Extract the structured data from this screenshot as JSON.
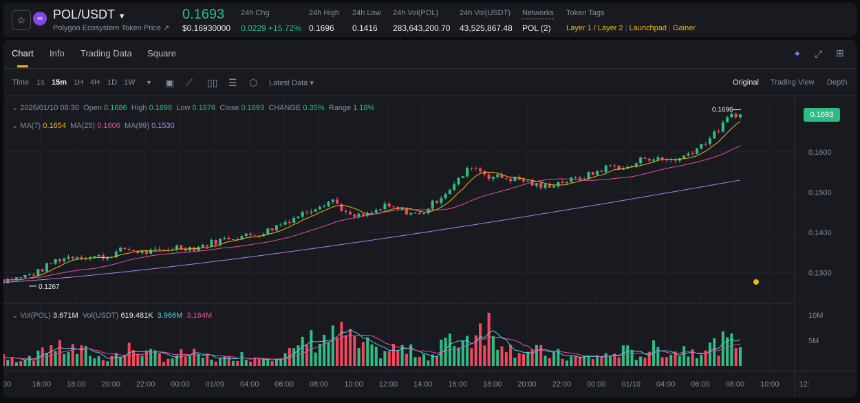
{
  "header": {
    "pair": "POL/USDT",
    "subtitle": "Polygon Ecosystem Token Price ↗",
    "last_price": "0.1693",
    "last_price_usd": "$0.16930000",
    "stats": [
      {
        "label": "24h Chg",
        "value": "0.0229 +15.72%"
      },
      {
        "label": "24h High",
        "value": "0.1696"
      },
      {
        "label": "24h Low",
        "value": "0.1416"
      },
      {
        "label": "24h Vol(POL)",
        "value": "283,643,200.70"
      },
      {
        "label": "24h Vol(USDT)",
        "value": "43,525,867.48"
      },
      {
        "label": "Networks",
        "value": "POL (2)"
      },
      {
        "label": "Token Tags"
      }
    ],
    "tags": [
      "Layer 1 / Layer 2",
      "Launchpad",
      "Gainer"
    ]
  },
  "tabs": [
    "Chart",
    "Info",
    "Trading Data",
    "Square"
  ],
  "toolbar": {
    "intervals": [
      "Time",
      "1s",
      "15m",
      "1H",
      "4H",
      "1D",
      "1W"
    ],
    "active": "15m",
    "latest": "Latest Data ▾",
    "views": [
      "Original",
      "Trading View",
      "Depth"
    ]
  },
  "ohlc": {
    "date": "2026/01/10 08:30",
    "open_l": "Open",
    "open": "0.1686",
    "high_l": "High",
    "high": "0.1696",
    "low_l": "Low",
    "low": "0.1676",
    "close_l": "Close",
    "close": "0.1693",
    "change_l": "CHANGE",
    "change": "0.35%",
    "range_l": "Range",
    "range": "1.18%"
  },
  "ma": {
    "ma7_l": "MA(7)",
    "ma7": "0.1654",
    "ma25_l": "MA(25)",
    "ma25": "0.1606",
    "ma99_l": "MA(99)",
    "ma99": "0.1530"
  },
  "vol": {
    "l1": "Vol(POL)",
    "v1": "3.671M",
    "l2": "Vol(USDT)",
    "v2": "619.481K",
    "v3": "3.966M",
    "v4": "3.164M"
  },
  "colors": {
    "up": "#2ebd85",
    "down": "#f6465d",
    "ma7": "#f0b90b",
    "ma25": "#e84f9c",
    "ma99": "#b083f0"
  },
  "chart_data": {
    "type": "candlestick",
    "interval": "15m",
    "hourly_close": [
      0.1293,
      0.1281,
      0.1288,
      0.1302,
      0.1331,
      0.1341,
      0.1339,
      0.134,
      0.136,
      0.135,
      0.1353,
      0.1365,
      0.1361,
      0.1375,
      0.1387,
      0.1392,
      0.14,
      0.1421,
      0.1442,
      0.1464,
      0.1481,
      0.1438,
      0.1443,
      0.1464,
      0.1455,
      0.1443,
      0.1481,
      0.1518,
      0.1566,
      0.154,
      0.1535,
      0.1529,
      0.1512,
      0.1524,
      0.1532,
      0.1546,
      0.1566,
      0.1558,
      0.1587,
      0.158,
      0.1583,
      0.1609,
      0.1643,
      0.1693
    ],
    "hourly_volume_M": [
      1.5,
      1.2,
      1.8,
      3.5,
      3,
      2.5,
      1.5,
      2,
      3,
      2,
      1.5,
      2,
      1.5,
      1.2,
      1.8,
      1.5,
      2,
      2.5,
      4.5,
      5,
      5.5,
      3.5,
      2.5,
      3,
      2.5,
      2,
      4,
      5,
      7.5,
      5,
      3,
      2.5,
      2,
      1.5,
      1.5,
      1.8,
      2.5,
      2,
      3,
      2.5,
      3,
      3.5,
      4,
      4
    ],
    "price_high_label": "0.1696",
    "price_low_label": "0.1267",
    "y_ticks": [
      "0.1600",
      "0.1500",
      "0.1400",
      "0.1300"
    ],
    "vol_ticks": [
      "10M",
      "5M"
    ],
    "x_ticks": [
      "00",
      "16:00",
      "18:00",
      "20:00",
      "22:00",
      "00:00",
      "01/09",
      "04:00",
      "06:00",
      "08:00",
      "10:00",
      "12:00",
      "14:00",
      "16:00",
      "18:00",
      "20:00",
      "22:00",
      "00:00",
      "01/10",
      "04:00",
      "06:00",
      "08:00",
      "10:00",
      "12:"
    ]
  }
}
